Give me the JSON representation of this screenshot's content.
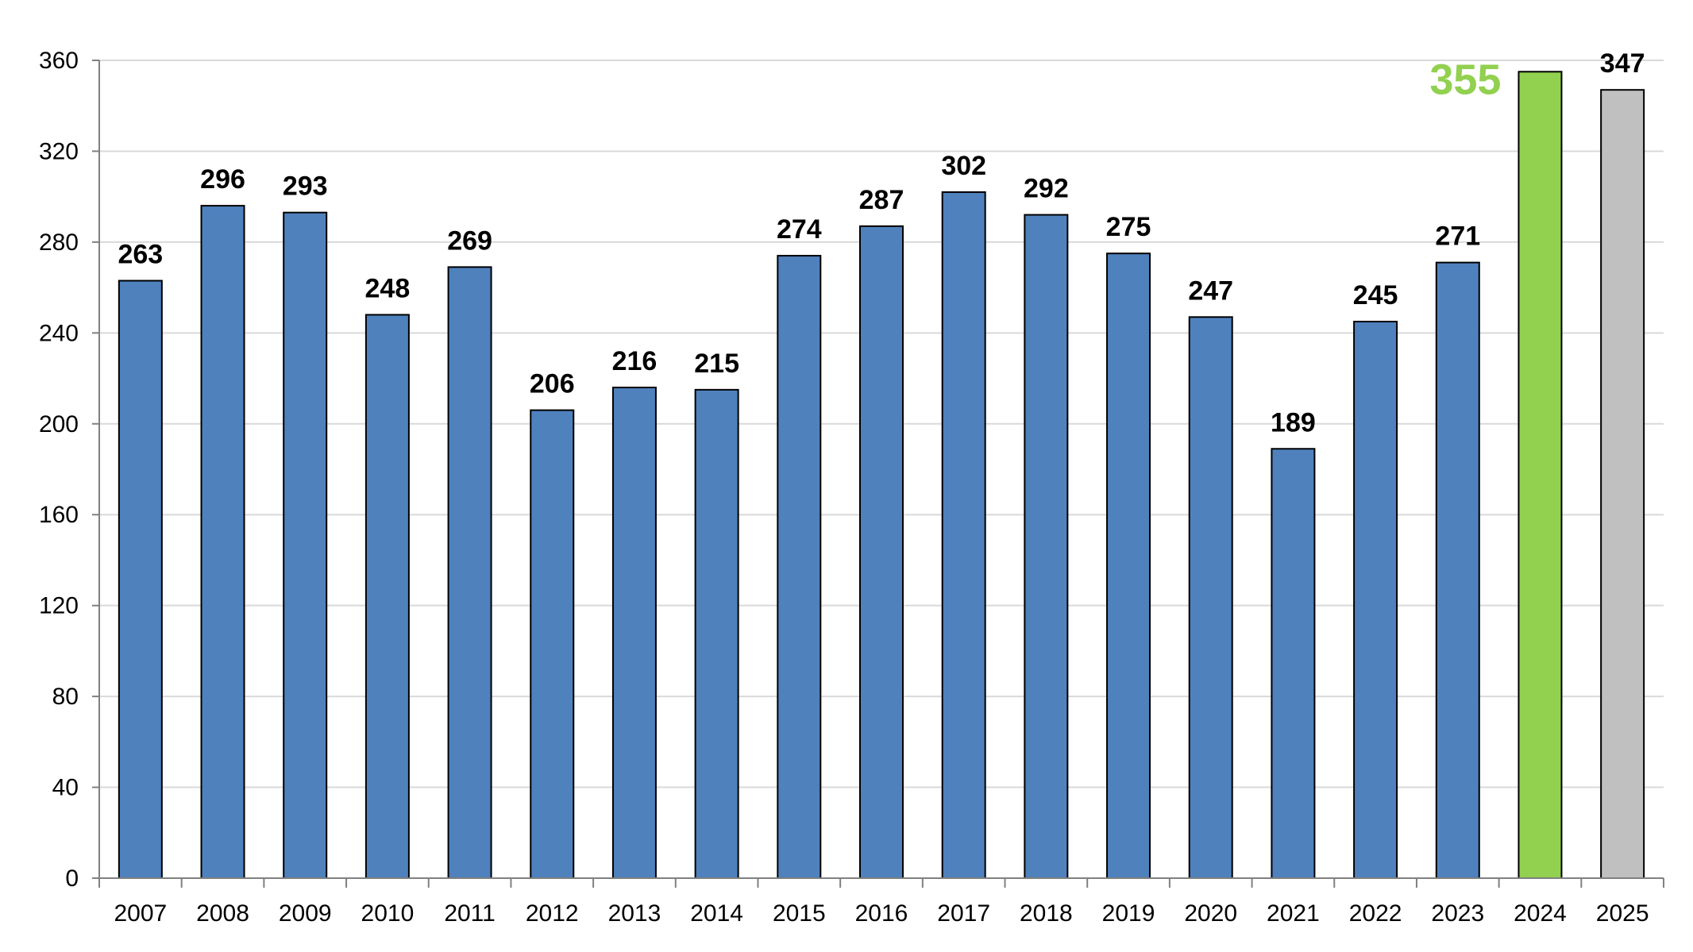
{
  "chart_data": {
    "type": "bar",
    "title": "",
    "xlabel": "",
    "ylabel": "",
    "ylim": [
      0,
      360
    ],
    "yticks": [
      0,
      40,
      80,
      120,
      160,
      200,
      240,
      280,
      320,
      360
    ],
    "grid": "horizontal",
    "legend": "none",
    "categories": [
      "2007",
      "2008",
      "2009",
      "2010",
      "2011",
      "2012",
      "2013",
      "2014",
      "2015",
      "2016",
      "2017",
      "2018",
      "2019",
      "2020",
      "2021",
      "2022",
      "2023",
      "2024",
      "2025"
    ],
    "values": [
      263,
      296,
      293,
      248,
      269,
      206,
      216,
      215,
      274,
      287,
      302,
      292,
      275,
      247,
      189,
      245,
      271,
      355,
      347
    ],
    "data_labels": [
      "263",
      "296",
      "293",
      "248",
      "269",
      "206",
      "216",
      "215",
      "274",
      "287",
      "302",
      "292",
      "275",
      "247",
      "189",
      "245",
      "271",
      "355",
      "347"
    ],
    "bar_colors": [
      "#4f81bd",
      "#4f81bd",
      "#4f81bd",
      "#4f81bd",
      "#4f81bd",
      "#4f81bd",
      "#4f81bd",
      "#4f81bd",
      "#4f81bd",
      "#4f81bd",
      "#4f81bd",
      "#4f81bd",
      "#4f81bd",
      "#4f81bd",
      "#4f81bd",
      "#4f81bd",
      "#4f81bd",
      "#92d050",
      "#c0c0c0"
    ],
    "label_colors": [
      "#000000",
      "#000000",
      "#000000",
      "#000000",
      "#000000",
      "#000000",
      "#000000",
      "#000000",
      "#000000",
      "#000000",
      "#000000",
      "#000000",
      "#000000",
      "#000000",
      "#000000",
      "#000000",
      "#000000",
      "#92d050",
      "#000000"
    ],
    "highlight_category": "2024",
    "colors": {
      "bar": "#4f81bd",
      "highlight": "#92d050",
      "last": "#c0c0c0",
      "grid": "#d9d9d9",
      "axis": "#808080",
      "bar_border": "#000000"
    }
  }
}
